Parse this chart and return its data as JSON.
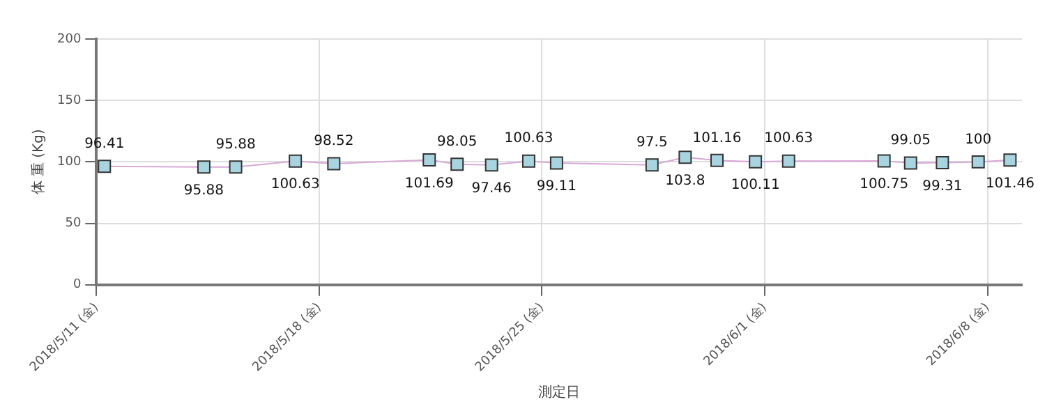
{
  "chart_data": {
    "type": "line",
    "xlabel": "測定日",
    "ylabel": "体 重 (Kg)",
    "x": [
      "2018-05-11T06:00",
      "2018-05-14T09:00",
      "2018-05-15T09:00",
      "2018-05-17T06:00",
      "2018-05-18T11:00",
      "2018-05-21T11:00",
      "2018-05-22T08:00",
      "2018-05-23T10:00",
      "2018-05-24T14:00",
      "2018-05-25T11:00",
      "2018-05-28T11:00",
      "2018-05-29T12:00",
      "2018-05-30T12:00",
      "2018-05-31T17:00",
      "2018-06-01T18:00",
      "2018-06-04T18:00",
      "2018-06-05T14:00",
      "2018-06-06T14:00",
      "2018-06-07T17:00",
      "2018-06-08T17:00"
    ],
    "series": [
      {
        "color": "#d8a8d8",
        "values": [
          96.41,
          95.88,
          95.88,
          100.63,
          98.52,
          101.69,
          98.05,
          97.46,
          100.63,
          99.11,
          97.5,
          103.8,
          101.16,
          100.11,
          100.63,
          100.75,
          99.05,
          99.31,
          100,
          101.46
        ]
      }
    ],
    "marker": "square",
    "data_labels": true,
    "grid": true,
    "legend": false,
    "xlim": [
      "2018-05-11",
      "2018-06-09T02:00"
    ],
    "xticks": [
      {
        "value": "2018-05-11",
        "label": "2018/5/11 (金)"
      },
      {
        "value": "2018-05-18",
        "label": "2018/5/18 (金)"
      },
      {
        "value": "2018-05-25",
        "label": "2018/5/25 (金)"
      },
      {
        "value": "2018-06-01",
        "label": "2018/6/1 (金)"
      },
      {
        "value": "2018-06-08",
        "label": "2018/6/8 (金)"
      }
    ],
    "ylim": [
      0,
      200
    ],
    "yticks": [
      0,
      50,
      100,
      150,
      200
    ]
  }
}
